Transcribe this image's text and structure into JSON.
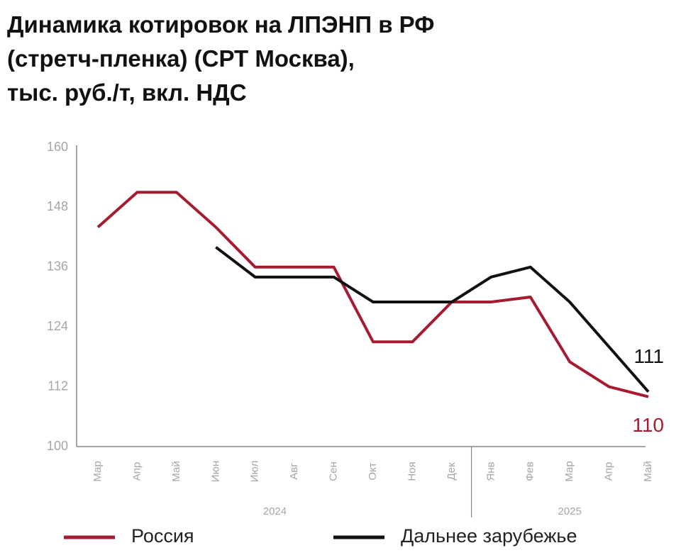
{
  "chart_data": {
    "type": "line",
    "title": [
      "Динамика котировок на ЛПЭНП в РФ",
      "(стретч-пленка) (СРТ Москва),",
      "тыс. руб./т, вкл. НДС"
    ],
    "categories": [
      "Мар",
      "Апр",
      "Май",
      "Июн",
      "Июл",
      "Авг",
      "Сен",
      "Окт",
      "Ноя",
      "Дек",
      "Янв",
      "Фев",
      "Мар",
      "Апр",
      "Май"
    ],
    "years": [
      {
        "label": "2024",
        "count": 10
      },
      {
        "label": "2025",
        "count": 5
      }
    ],
    "series": [
      {
        "name": "Россия",
        "color": "#a51c30",
        "values": [
          144,
          151,
          151,
          144,
          136,
          136,
          136,
          121,
          121,
          129,
          129,
          130,
          117,
          112,
          110
        ]
      },
      {
        "name": "Дальнее зарубежье",
        "color": "#111111",
        "values": [
          null,
          null,
          null,
          140,
          134,
          134,
          134,
          129,
          129,
          129,
          134,
          136,
          129,
          120,
          111
        ]
      }
    ],
    "ylim": [
      100,
      160
    ],
    "yticks": [
      100,
      112,
      124,
      136,
      148,
      160
    ],
    "grid": false
  }
}
